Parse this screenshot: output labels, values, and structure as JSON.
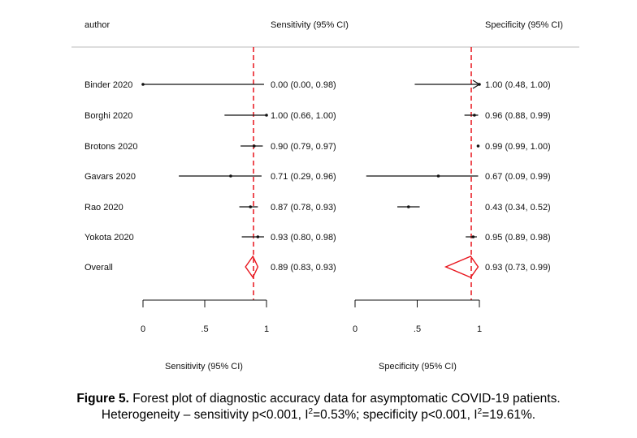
{
  "chart_data": {
    "type": "forest",
    "headers": {
      "author": "author",
      "sensitivity": "Sensitivity (95% CI)",
      "specificity": "Specificity (95% CI)"
    },
    "studies": [
      {
        "author": "Binder 2020",
        "sens": 0.0,
        "sens_lo": 0.0,
        "sens_hi": 0.98,
        "sens_text": "0.00 (0.00, 0.98)",
        "spec": 1.0,
        "spec_lo": 0.48,
        "spec_hi": 1.0,
        "spec_text": "1.00 (0.48, 1.00)"
      },
      {
        "author": "Borghi 2020",
        "sens": 1.0,
        "sens_lo": 0.66,
        "sens_hi": 1.0,
        "sens_text": "1.00 (0.66, 1.00)",
        "spec": 0.96,
        "spec_lo": 0.88,
        "spec_hi": 0.99,
        "spec_text": "0.96 (0.88, 0.99)"
      },
      {
        "author": "Brotons 2020",
        "sens": 0.9,
        "sens_lo": 0.79,
        "sens_hi": 0.97,
        "sens_text": "0.90 (0.79, 0.97)",
        "spec": 0.99,
        "spec_lo": 0.99,
        "spec_hi": 1.0,
        "spec_text": "0.99 (0.99, 1.00)"
      },
      {
        "author": "Gavars 2020",
        "sens": 0.71,
        "sens_lo": 0.29,
        "sens_hi": 0.96,
        "sens_text": "0.71 (0.29, 0.96)",
        "spec": 0.67,
        "spec_lo": 0.09,
        "spec_hi": 0.99,
        "spec_text": "0.67 (0.09, 0.99)"
      },
      {
        "author": "Rao 2020",
        "sens": 0.87,
        "sens_lo": 0.78,
        "sens_hi": 0.93,
        "sens_text": "0.87 (0.78, 0.93)",
        "spec": 0.43,
        "spec_lo": 0.34,
        "spec_hi": 0.52,
        "spec_text": "0.43 (0.34, 0.52)"
      },
      {
        "author": "Yokota 2020",
        "sens": 0.93,
        "sens_lo": 0.8,
        "sens_hi": 0.98,
        "sens_text": "0.93 (0.80, 0.98)",
        "spec": 0.95,
        "spec_lo": 0.89,
        "spec_hi": 0.98,
        "spec_text": "0.95 (0.89, 0.98)"
      }
    ],
    "overall": {
      "author": "Overall",
      "sens": 0.89,
      "sens_lo": 0.83,
      "sens_hi": 0.93,
      "sens_text": "0.89 (0.83, 0.93)",
      "spec": 0.93,
      "spec_lo": 0.73,
      "spec_hi": 0.99,
      "spec_text": "0.93 (0.73, 0.99)"
    },
    "xlim": [
      0,
      1
    ],
    "ticks": [
      "0",
      ".5",
      "1"
    ],
    "tick_values": [
      0,
      0.5,
      1
    ],
    "xlabel_sensitivity": "Sensitivity (95% CI)",
    "xlabel_specificity": "Specificity (95% CI)",
    "colors": {
      "reference_line": "#e8141c",
      "summary_diamond": "#e8141c",
      "ci_line": "#111111"
    }
  },
  "caption": {
    "label": "Figure 5.",
    "line1": " Forest plot of diagnostic accuracy data for asymptomatic COVID-19 patients.",
    "line2_a": "Heterogeneity – sensitivity p<0.001, I",
    "sup1": "2",
    "line2_b": "=0.53%; specificity p<0.001, I",
    "sup2": "2",
    "line2_c": "=19.61%."
  }
}
